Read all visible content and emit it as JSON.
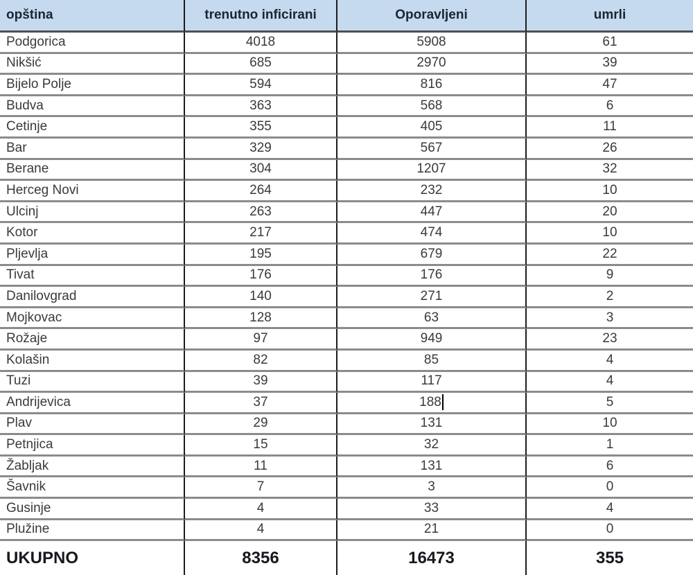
{
  "table": {
    "columns": [
      "opština",
      "trenutno inficirani",
      "Oporavljeni",
      "umrli"
    ],
    "rows": [
      {
        "name": "Podgorica",
        "infected": "4018",
        "recovered": "5908",
        "deaths": "61"
      },
      {
        "name": "Nikšić",
        "infected": "685",
        "recovered": "2970",
        "deaths": "39"
      },
      {
        "name": "Bijelo Polje",
        "infected": "594",
        "recovered": "816",
        "deaths": "47"
      },
      {
        "name": "Budva",
        "infected": "363",
        "recovered": "568",
        "deaths": "6"
      },
      {
        "name": "Cetinje",
        "infected": "355",
        "recovered": "405",
        "deaths": "11"
      },
      {
        "name": "Bar",
        "infected": "329",
        "recovered": "567",
        "deaths": "26"
      },
      {
        "name": "Berane",
        "infected": "304",
        "recovered": "1207",
        "deaths": "32"
      },
      {
        "name": "Herceg Novi",
        "infected": "264",
        "recovered": "232",
        "deaths": "10"
      },
      {
        "name": "Ulcinj",
        "infected": "263",
        "recovered": "447",
        "deaths": "20"
      },
      {
        "name": "Kotor",
        "infected": "217",
        "recovered": "474",
        "deaths": "10"
      },
      {
        "name": "Pljevlja",
        "infected": "195",
        "recovered": "679",
        "deaths": "22"
      },
      {
        "name": "Tivat",
        "infected": "176",
        "recovered": "176",
        "deaths": "9"
      },
      {
        "name": "Danilovgrad",
        "infected": "140",
        "recovered": "271",
        "deaths": "2"
      },
      {
        "name": "Mojkovac",
        "infected": "128",
        "recovered": "63",
        "deaths": "3"
      },
      {
        "name": "Rožaje",
        "infected": "97",
        "recovered": "949",
        "deaths": "23"
      },
      {
        "name": "Kolašin",
        "infected": "82",
        "recovered": "85",
        "deaths": "4"
      },
      {
        "name": "Tuzi",
        "infected": "39",
        "recovered": "117",
        "deaths": "4"
      },
      {
        "name": "Andrijevica",
        "infected": "37",
        "recovered": "188",
        "deaths": "5",
        "caret_after_recovered": true
      },
      {
        "name": "Plav",
        "infected": "29",
        "recovered": "131",
        "deaths": "10"
      },
      {
        "name": "Petnjica",
        "infected": "15",
        "recovered": "32",
        "deaths": "1"
      },
      {
        "name": "Žabljak",
        "infected": "11",
        "recovered": "131",
        "deaths": "6"
      },
      {
        "name": "Šavnik",
        "infected": "7",
        "recovered": "3",
        "deaths": "0"
      },
      {
        "name": "Gusinje",
        "infected": "4",
        "recovered": "33",
        "deaths": "4"
      },
      {
        "name": "Plužine",
        "infected": "4",
        "recovered": "21",
        "deaths": "0"
      }
    ],
    "total": {
      "label": "UKUPNO",
      "infected": "8356",
      "recovered": "16473",
      "deaths": "355"
    },
    "colors": {
      "header_bg": "#c5daee",
      "header_text": "#1b2533",
      "body_text": "#3a3a3a",
      "row_border": "#8b8b8b",
      "column_border": "#1c1c1c"
    }
  }
}
